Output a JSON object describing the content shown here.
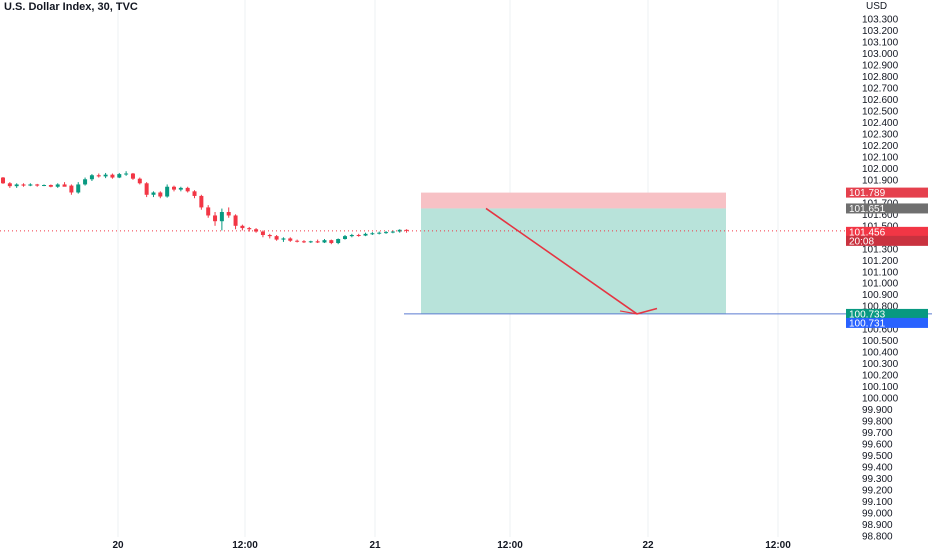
{
  "header": {
    "title": "U.S. Dollar Index, 30, TVC"
  },
  "colors": {
    "up": "#089981",
    "down": "#f23645",
    "grid": "#eef0f3",
    "text": "#131722",
    "stop_zone": "#f7c1c5",
    "target_zone": "#b8e3da",
    "arrow": "#e53542",
    "current_line": "#f23645",
    "target_line": "#5b7bd1",
    "countdown": "#c9323f",
    "entry_badge": "#6f6f6f",
    "target_badge_upper": "#089981",
    "target_badge_lower": "#2962ff"
  },
  "chart_data": {
    "type": "candlestick",
    "y_unit": "USD",
    "ylim": [
      98.8,
      103.3
    ],
    "y_ticks": [
      "103.300",
      "103.200",
      "103.100",
      "103.000",
      "102.900",
      "102.800",
      "102.700",
      "102.600",
      "102.500",
      "102.400",
      "102.300",
      "102.200",
      "102.100",
      "102.000",
      "101.900",
      "101.800",
      "101.700",
      "101.600",
      "101.500",
      "101.400",
      "101.300",
      "101.200",
      "101.100",
      "101.000",
      "100.900",
      "100.800",
      "100.700",
      "100.600",
      "100.500",
      "100.400",
      "100.300",
      "100.200",
      "100.100",
      "100.000",
      "99.900",
      "99.800",
      "99.700",
      "99.600",
      "99.500",
      "99.400",
      "99.300",
      "99.200",
      "99.100",
      "99.000",
      "98.900",
      "98.800"
    ],
    "x_ticks": [
      "20",
      "12:00",
      "21",
      "12:00",
      "22",
      "12:00"
    ],
    "grid": true,
    "candles": [
      [
        101.92,
        101.925,
        101.865,
        101.87
      ],
      [
        101.87,
        101.88,
        101.83,
        101.845
      ],
      [
        101.845,
        101.87,
        101.83,
        101.86
      ],
      [
        101.86,
        101.87,
        101.84,
        101.85
      ],
      [
        101.85,
        101.87,
        101.845,
        101.86
      ],
      [
        101.86,
        101.865,
        101.84,
        101.85
      ],
      [
        101.85,
        101.86,
        101.845,
        101.855
      ],
      [
        101.855,
        101.86,
        101.835,
        101.84
      ],
      [
        101.84,
        101.87,
        101.83,
        101.86
      ],
      [
        101.86,
        101.88,
        101.85,
        101.84
      ],
      [
        101.85,
        101.86,
        101.77,
        101.79
      ],
      [
        101.79,
        101.88,
        101.78,
        101.86
      ],
      [
        101.86,
        101.92,
        101.85,
        101.905
      ],
      [
        101.905,
        101.95,
        101.89,
        101.94
      ],
      [
        101.94,
        101.955,
        101.92,
        101.93
      ],
      [
        101.93,
        101.96,
        101.915,
        101.945
      ],
      [
        101.945,
        101.955,
        101.91,
        101.92
      ],
      [
        101.92,
        101.96,
        101.915,
        101.95
      ],
      [
        101.95,
        101.975,
        101.935,
        101.955
      ],
      [
        101.955,
        101.96,
        101.9,
        101.91
      ],
      [
        101.91,
        101.92,
        101.86,
        101.87
      ],
      [
        101.87,
        101.88,
        101.75,
        101.77
      ],
      [
        101.77,
        101.8,
        101.75,
        101.79
      ],
      [
        101.79,
        101.8,
        101.74,
        101.755
      ],
      [
        101.755,
        101.86,
        101.745,
        101.84
      ],
      [
        101.84,
        101.85,
        101.8,
        101.815
      ],
      [
        101.815,
        101.84,
        101.8,
        101.83
      ],
      [
        101.83,
        101.84,
        101.79,
        101.8
      ],
      [
        101.8,
        101.81,
        101.74,
        101.76
      ],
      [
        101.76,
        101.77,
        101.64,
        101.66
      ],
      [
        101.66,
        101.68,
        101.57,
        101.59
      ],
      [
        101.59,
        101.62,
        101.5,
        101.54
      ],
      [
        101.54,
        101.65,
        101.46,
        101.62
      ],
      [
        101.62,
        101.66,
        101.57,
        101.59
      ],
      [
        101.59,
        101.6,
        101.47,
        101.5
      ],
      [
        101.5,
        101.51,
        101.46,
        101.48
      ],
      [
        101.48,
        101.49,
        101.45,
        101.47
      ],
      [
        101.47,
        101.48,
        101.44,
        101.45
      ],
      [
        101.45,
        101.46,
        101.4,
        101.42
      ],
      [
        101.42,
        101.43,
        101.39,
        101.41
      ],
      [
        101.41,
        101.42,
        101.37,
        101.38
      ],
      [
        101.38,
        101.4,
        101.36,
        101.39
      ],
      [
        101.39,
        101.4,
        101.36,
        101.37
      ],
      [
        101.37,
        101.38,
        101.355,
        101.365
      ],
      [
        101.365,
        101.375,
        101.35,
        101.36
      ],
      [
        101.36,
        101.37,
        101.35,
        101.365
      ],
      [
        101.365,
        101.38,
        101.35,
        101.355
      ],
      [
        101.355,
        101.385,
        101.35,
        101.375
      ],
      [
        101.375,
        101.38,
        101.34,
        101.35
      ],
      [
        101.35,
        101.39,
        101.34,
        101.385
      ],
      [
        101.385,
        101.42,
        101.38,
        101.41
      ],
      [
        101.41,
        101.43,
        101.4,
        101.42
      ],
      [
        101.42,
        101.43,
        101.405,
        101.415
      ],
      [
        101.415,
        101.44,
        101.41,
        101.43
      ],
      [
        101.43,
        101.445,
        101.42,
        101.435
      ],
      [
        101.435,
        101.45,
        101.425,
        101.44
      ],
      [
        101.44,
        101.455,
        101.43,
        101.445
      ],
      [
        101.445,
        101.46,
        101.435,
        101.45
      ],
      [
        101.45,
        101.47,
        101.44,
        101.465
      ],
      [
        101.465,
        101.47,
        101.44,
        101.456
      ]
    ],
    "position": {
      "stop": 101.789,
      "entry": 101.651,
      "target": 100.733
    },
    "projection": [
      {
        "x": "21 ~14:30",
        "y": 101.651
      },
      {
        "x": "22 ~00:30",
        "y": 100.733
      },
      {
        "x": "22 ~02:00",
        "y": 100.78
      }
    ],
    "price_labels": [
      {
        "text": "101.789",
        "value": 101.789,
        "role": "stop"
      },
      {
        "text": "101.651",
        "value": 101.651,
        "role": "entry"
      },
      {
        "text": "101.456",
        "value": 101.456,
        "role": "current"
      },
      {
        "text": "20:08",
        "value": null,
        "role": "countdown"
      },
      {
        "text": "100.733",
        "value": 100.733,
        "role": "target"
      },
      {
        "text": "100.731",
        "value": null,
        "role": "target-secondary"
      }
    ]
  }
}
